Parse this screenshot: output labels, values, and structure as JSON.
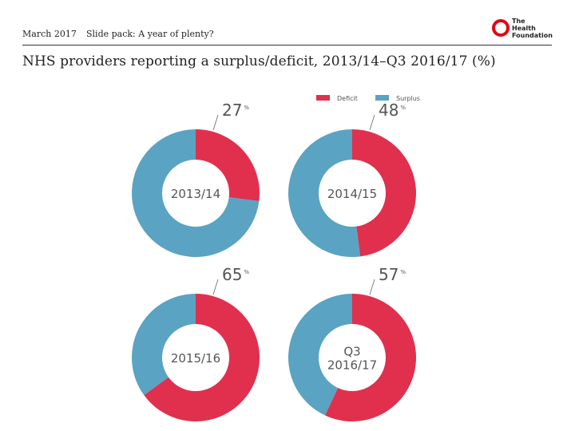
{
  "header": {
    "date": "March 2017",
    "slide_title": "Slide pack: A year of plenty?",
    "logo_text": "The\nHealth\nFoundation"
  },
  "title": "NHS providers reporting a surplus/deficit, 2013/14–Q3 2016/17 (%)",
  "colors": {
    "deficit": "#e0304e",
    "surplus": "#5aa3c2",
    "text": "#555555"
  },
  "chart_data": {
    "type": "pie",
    "legend": {
      "placement": "top-right",
      "entries": [
        "Deficit",
        "Surplus"
      ]
    },
    "charts": [
      {
        "label": "2013/14",
        "deficit": 27,
        "surplus": 73,
        "callout": "27",
        "unit": "%"
      },
      {
        "label": "2014/15",
        "deficit": 48,
        "surplus": 52,
        "callout": "48",
        "unit": "%"
      },
      {
        "label": "2015/16",
        "deficit": 65,
        "surplus": 35,
        "callout": "65",
        "unit": "%"
      },
      {
        "label": "Q3 2016/17",
        "label_lines": [
          "Q3",
          "2016/17"
        ],
        "deficit": 57,
        "surplus": 43,
        "callout": "57",
        "unit": "%"
      }
    ]
  }
}
